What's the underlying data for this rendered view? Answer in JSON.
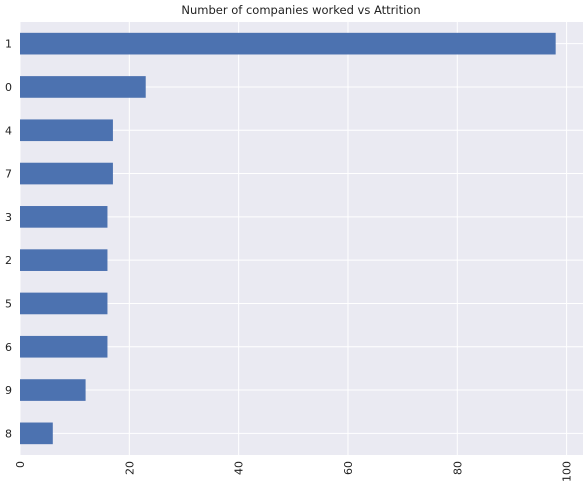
{
  "chart_data": {
    "type": "bar",
    "orientation": "horizontal",
    "title": "Number of companies worked vs Attrition",
    "xlabel": "",
    "ylabel": "",
    "categories": [
      "1",
      "0",
      "4",
      "7",
      "3",
      "2",
      "5",
      "6",
      "9",
      "8"
    ],
    "values": [
      98,
      23,
      17,
      17,
      16,
      16,
      16,
      16,
      12,
      6
    ],
    "xlim": [
      0,
      103
    ],
    "xticks": [
      "0",
      "20",
      "40",
      "60",
      "80",
      "100"
    ],
    "grid": true,
    "colors": {
      "bar": "#4c72b0",
      "plot_background": "#eaeaf2",
      "grid": "#ffffff"
    }
  }
}
